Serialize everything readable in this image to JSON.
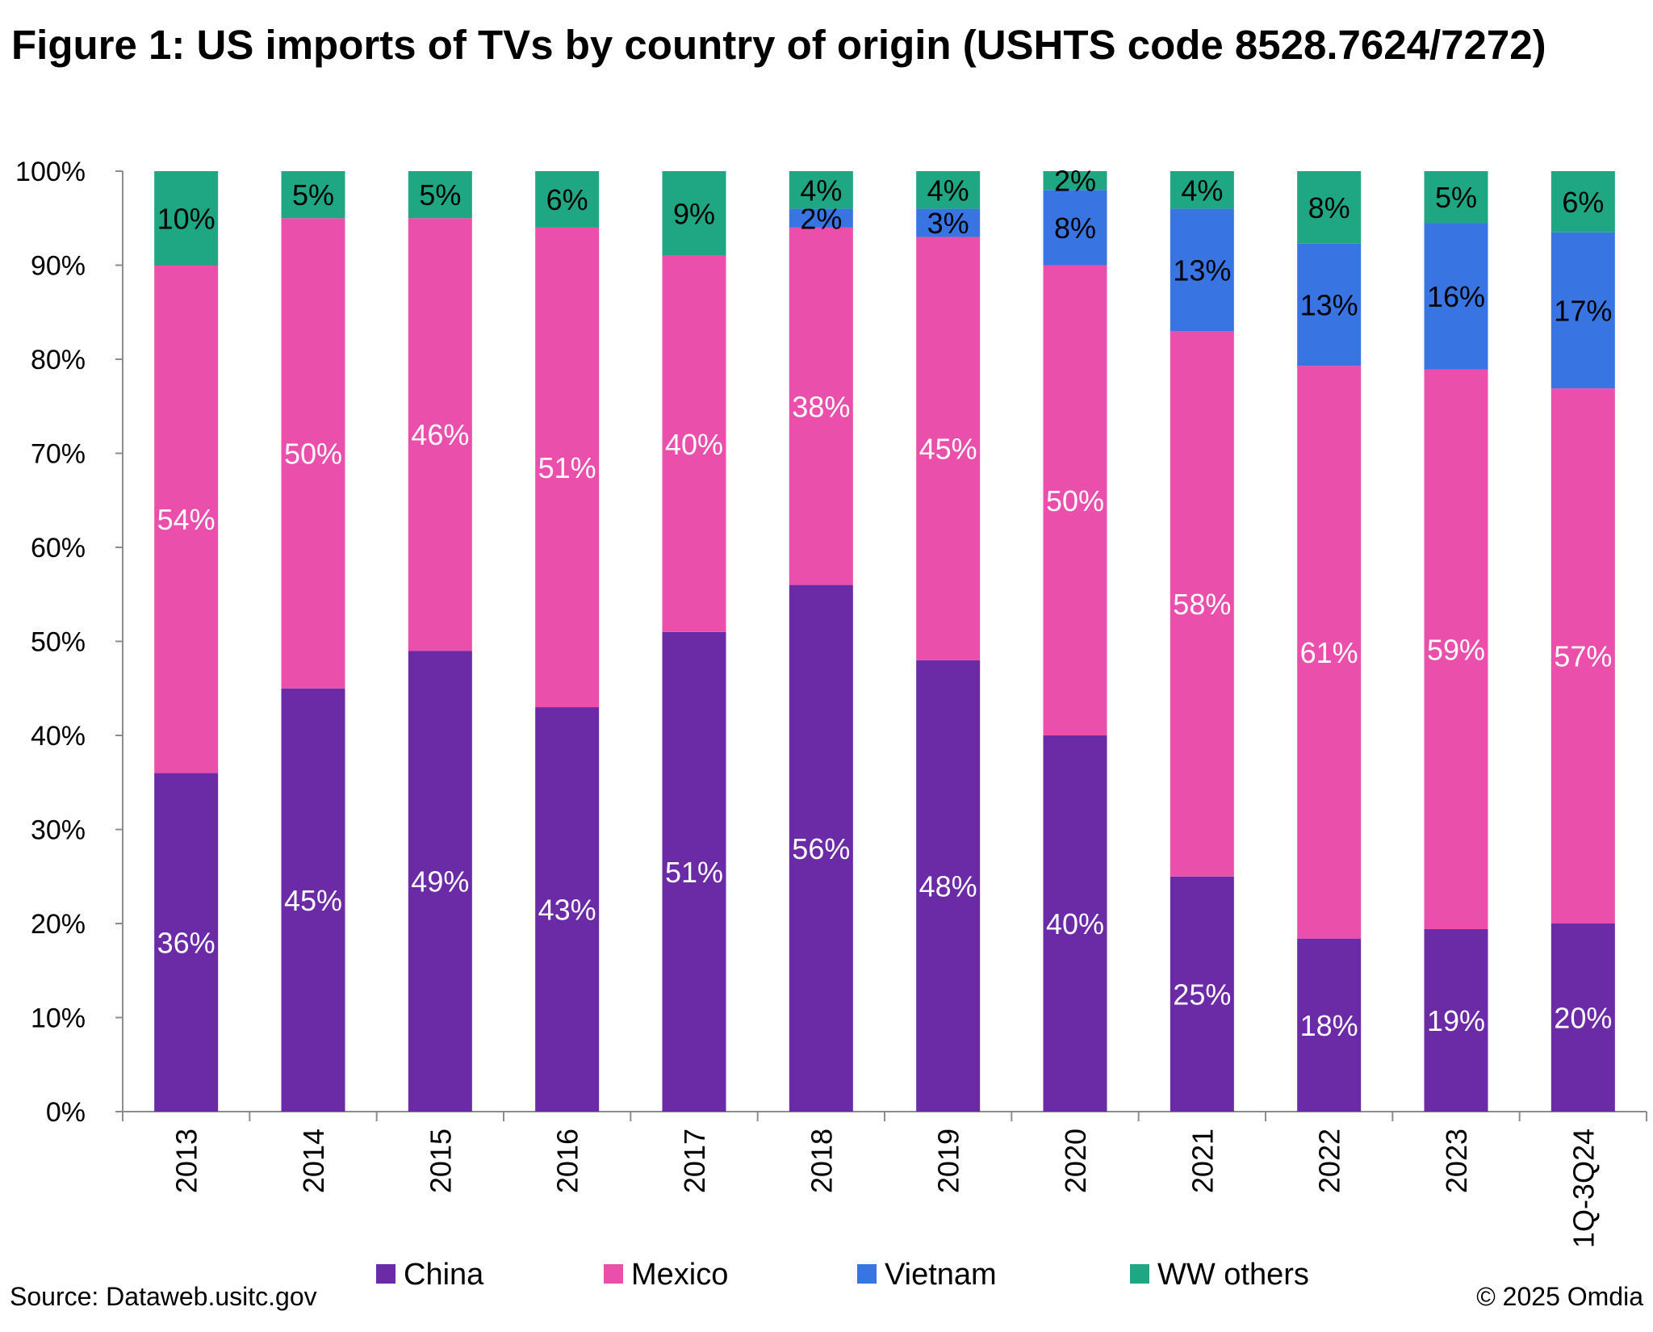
{
  "title": "Figure 1: US imports of TVs by country of origin (USHTS code 8528.7624/7272)",
  "source": "Source: Dataweb.usitc.gov",
  "copyright": "© 2025 Omdia",
  "chart_data": {
    "type": "bar",
    "stacked": true,
    "title": "Figure 1: US imports of TVs by country of origin (USHTS code 8528.7624/7272)",
    "xlabel": "",
    "ylabel": "",
    "ylim": [
      0,
      100
    ],
    "y_ticks": [
      "0%",
      "10%",
      "20%",
      "30%",
      "40%",
      "50%",
      "60%",
      "70%",
      "80%",
      "90%",
      "100%"
    ],
    "categories": [
      "2013",
      "2014",
      "2015",
      "2016",
      "2017",
      "2018",
      "2019",
      "2020",
      "2021",
      "2022",
      "2023",
      "1Q-3Q24"
    ],
    "legend_position": "bottom",
    "series": [
      {
        "name": "China",
        "color": "#6b2aa6",
        "label_color": "#ffffff",
        "values": [
          36,
          45,
          49,
          43,
          51,
          56,
          48,
          40,
          25,
          18.4,
          19.4,
          20
        ],
        "labels": [
          "36%",
          "45%",
          "49%",
          "43%",
          "51%",
          "56%",
          "48%",
          "40%",
          "25%",
          "18%",
          "19%",
          "20%"
        ]
      },
      {
        "name": "Mexico",
        "color": "#ea4fab",
        "label_color": "#ffffff",
        "values": [
          54,
          50,
          46,
          51,
          40,
          38,
          45,
          50,
          58,
          60.9,
          59.5,
          56.9
        ],
        "labels": [
          "54%",
          "50%",
          "46%",
          "51%",
          "40%",
          "38%",
          "45%",
          "50%",
          "58%",
          "61%",
          "59%",
          "57%"
        ]
      },
      {
        "name": "Vietnam",
        "color": "#3875e3",
        "label_color": "#000000",
        "values": [
          null,
          null,
          null,
          null,
          null,
          2,
          3,
          8,
          13,
          13,
          15.6,
          16.6
        ],
        "labels": [
          null,
          null,
          null,
          null,
          null,
          "2%",
          "3%",
          "8%",
          "13%",
          "13%",
          "16%",
          "17%"
        ]
      },
      {
        "name": "WW others",
        "color": "#1fa683",
        "label_color": "#000000",
        "values": [
          10,
          5,
          5,
          6,
          9,
          4,
          4,
          2,
          4,
          7.7,
          5.5,
          6.5
        ],
        "labels": [
          "10%",
          "5%",
          "5%",
          "6%",
          "9%",
          "4%",
          "4%",
          "2%",
          "4%",
          "8%",
          "5%",
          "6%"
        ]
      }
    ]
  }
}
